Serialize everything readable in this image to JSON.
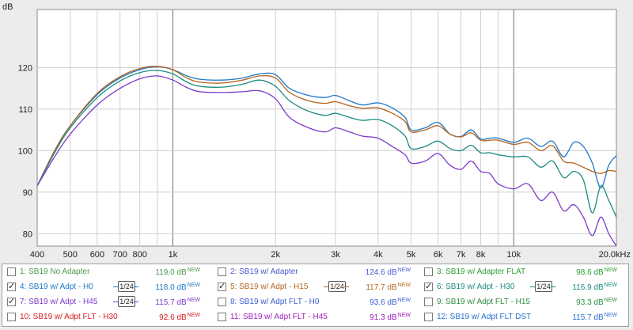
{
  "chart_data": {
    "type": "line",
    "title": "",
    "ylabel": "dB",
    "xlabel": "",
    "x_scale": "log",
    "xlim": [
      400,
      20000
    ],
    "ylim": [
      77,
      134
    ],
    "grid": true,
    "x_ticks": [
      {
        "value": 400,
        "label": "400"
      },
      {
        "value": 500,
        "label": "500"
      },
      {
        "value": 600,
        "label": "600"
      },
      {
        "value": 700,
        "label": "700"
      },
      {
        "value": 800,
        "label": "800"
      },
      {
        "value": 1000,
        "label": "1k"
      },
      {
        "value": 2000,
        "label": "2k"
      },
      {
        "value": 3000,
        "label": "3k"
      },
      {
        "value": 4000,
        "label": "4k"
      },
      {
        "value": 5000,
        "label": "5k"
      },
      {
        "value": 6000,
        "label": "6k"
      },
      {
        "value": 7000,
        "label": "7k"
      },
      {
        "value": 8000,
        "label": "8k"
      },
      {
        "value": 10000,
        "label": "10k"
      },
      {
        "value": 20000,
        "label": "20.0kHz"
      }
    ],
    "y_ticks": [
      {
        "value": 80,
        "label": "80"
      },
      {
        "value": 90,
        "label": "90"
      },
      {
        "value": 100,
        "label": "100"
      },
      {
        "value": 110,
        "label": "110"
      },
      {
        "value": 120,
        "label": "120"
      }
    ],
    "series": [
      {
        "name": "4: SB19 w/ Adpt - H0",
        "color": "#1f77c8",
        "x": [
          400,
          450,
          500,
          600,
          700,
          800,
          900,
          1000,
          1100,
          1200,
          1400,
          1600,
          1800,
          2000,
          2200,
          2500,
          2800,
          3000,
          3300,
          3600,
          4000,
          4400,
          4800,
          5000,
          5500,
          6000,
          6500,
          7000,
          7500,
          8000,
          8500,
          9000,
          10000,
          11000,
          12000,
          13000,
          14000,
          15000,
          16000,
          17000,
          18000,
          19000,
          20000
        ],
        "y": [
          91.5,
          100,
          106,
          113.5,
          117.5,
          119.5,
          120.2,
          119.5,
          118,
          117.2,
          117,
          117.5,
          118.5,
          118.3,
          115,
          113.3,
          112.8,
          113.3,
          112,
          111,
          111.5,
          110.3,
          108,
          105,
          105.5,
          106.8,
          104,
          103.4,
          105,
          102.8,
          103,
          103,
          102,
          103,
          101,
          102.3,
          98.5,
          102,
          101,
          97,
          91,
          96.5,
          98.8
        ]
      },
      {
        "name": "5: SB19 w/ Adpt - H15",
        "color": "#b5651d",
        "x": [
          400,
          450,
          500,
          600,
          700,
          800,
          900,
          1000,
          1100,
          1200,
          1400,
          1600,
          1800,
          2000,
          2200,
          2500,
          2800,
          3000,
          3300,
          3600,
          4000,
          4400,
          4800,
          5000,
          5500,
          6000,
          6500,
          7000,
          7500,
          8000,
          8500,
          9000,
          10000,
          11000,
          12000,
          13000,
          14000,
          15000,
          16000,
          17000,
          18000,
          19000,
          20000
        ],
        "y": [
          91.5,
          100,
          106,
          113.8,
          117.8,
          119.8,
          120.3,
          119.5,
          117.5,
          116.5,
          116.3,
          117,
          118,
          117.5,
          114,
          112,
          111.4,
          111.8,
          110.8,
          110.2,
          110.3,
          109,
          107,
          104.5,
          105,
          106,
          104,
          103.3,
          104.3,
          102.5,
          102.5,
          102.5,
          101.5,
          102,
          100,
          101.2,
          97.5,
          97,
          96,
          95,
          94.5,
          95.2,
          95
        ]
      },
      {
        "name": "6: SB19 w/ Adpt - H30",
        "color": "#1a8a80",
        "x": [
          400,
          450,
          500,
          600,
          700,
          800,
          900,
          1000,
          1100,
          1200,
          1400,
          1600,
          1800,
          2000,
          2200,
          2500,
          2800,
          3000,
          3300,
          3600,
          4000,
          4400,
          4800,
          5000,
          5500,
          6000,
          6500,
          7000,
          7500,
          8000,
          8500,
          9000,
          10000,
          11000,
          12000,
          13000,
          14000,
          15000,
          16000,
          17000,
          18000,
          19000,
          20000
        ],
        "y": [
          91.5,
          99.5,
          105.5,
          112.8,
          116.8,
          118.8,
          119.3,
          118.5,
          116.5,
          115.5,
          115.3,
          116,
          117,
          115.5,
          112,
          109.5,
          108.5,
          109,
          108,
          107.3,
          107.5,
          106,
          103.5,
          100.5,
          101,
          102.3,
          100.5,
          100,
          101.3,
          99.5,
          99.5,
          99,
          98.5,
          98.5,
          96,
          97.5,
          93.5,
          95,
          93,
          85,
          91.5,
          88,
          84
        ]
      },
      {
        "name": "7: SB19 w/ Adpt - H45",
        "color": "#7d3ac9",
        "x": [
          400,
          450,
          500,
          600,
          700,
          800,
          900,
          1000,
          1100,
          1200,
          1400,
          1600,
          1800,
          2000,
          2200,
          2500,
          2800,
          3000,
          3300,
          3600,
          4000,
          4400,
          4800,
          5000,
          5500,
          6000,
          6500,
          7000,
          7500,
          8000,
          8500,
          9000,
          10000,
          11000,
          12000,
          13000,
          14000,
          15000,
          16000,
          17000,
          18000,
          19000,
          20000
        ],
        "y": [
          91.5,
          98.5,
          104,
          111,
          115,
          117.3,
          118,
          117,
          115.2,
          114.2,
          114,
          114.2,
          114.4,
          112.5,
          108,
          105.5,
          104.5,
          105.5,
          104.5,
          103.5,
          103,
          101,
          99,
          97,
          97.5,
          99.3,
          96.5,
          95.5,
          97.5,
          95,
          94.5,
          92,
          90.8,
          92,
          88,
          90,
          85.5,
          87,
          84,
          79.5,
          84,
          80,
          77
        ]
      }
    ]
  },
  "legend": {
    "rows": [
      [
        {
          "label": "1: SB19 No Adapter",
          "value": "119.0 dB",
          "sup": "NEW",
          "checked": false,
          "color": "#4a9a4a"
        },
        {
          "label": "2: SB19 w/ Adapter",
          "value": "124.6 dB",
          "sup": "NEW",
          "checked": false,
          "color": "#4a5ad0"
        },
        {
          "label": "3: SB19 w/ Adapter FLAT",
          "value": "98.6 dB",
          "sup": "NEW",
          "checked": false,
          "color": "#2e9e2e"
        }
      ],
      [
        {
          "label": "4: SB19 w/ Adpt - H0",
          "value": "118.0 dB",
          "sup": "NEW",
          "checked": true,
          "color": "#1f77c8",
          "smoothing": "1/24"
        },
        {
          "label": "5: SB19 w/ Adpt - H15",
          "value": "117.7 dB",
          "sup": "NEW",
          "checked": true,
          "color": "#b5651d",
          "smoothing": "1/24"
        },
        {
          "label": "6: SB19 w/ Adpt - H30",
          "value": "116.9 dB",
          "sup": "NEW",
          "checked": true,
          "color": "#1a8a80",
          "smoothing": "1/24"
        }
      ],
      [
        {
          "label": "7: SB19 w/ Adpt - H45",
          "value": "115.7 dB",
          "sup": "NEW",
          "checked": true,
          "color": "#7d3ac9",
          "smoothing": "1/24"
        },
        {
          "label": "8: SB19 w/ Adpt FLT - H0",
          "value": "93.6 dB",
          "sup": "NEW",
          "checked": false,
          "color": "#3a5fd0"
        },
        {
          "label": "9: SB19 w/ Adpt FLT - H15",
          "value": "93.3 dB",
          "sup": "NEW",
          "checked": false,
          "color": "#2e8e40"
        }
      ],
      [
        {
          "label": "10: SB19 w/ Adpt FLT - H30",
          "value": "92.6 dB",
          "sup": "NEW",
          "checked": false,
          "color": "#d02020"
        },
        {
          "label": "11: SB19 w/ Adpt FLT - H45",
          "value": "91.3 dB",
          "sup": "NEW",
          "checked": false,
          "color": "#a020c0"
        },
        {
          "label": "12: SB19 w/ Adpt FLT DST",
          "value": "115.7 dB",
          "sup": "NEW",
          "checked": false,
          "color": "#2a6fd0"
        }
      ]
    ]
  }
}
